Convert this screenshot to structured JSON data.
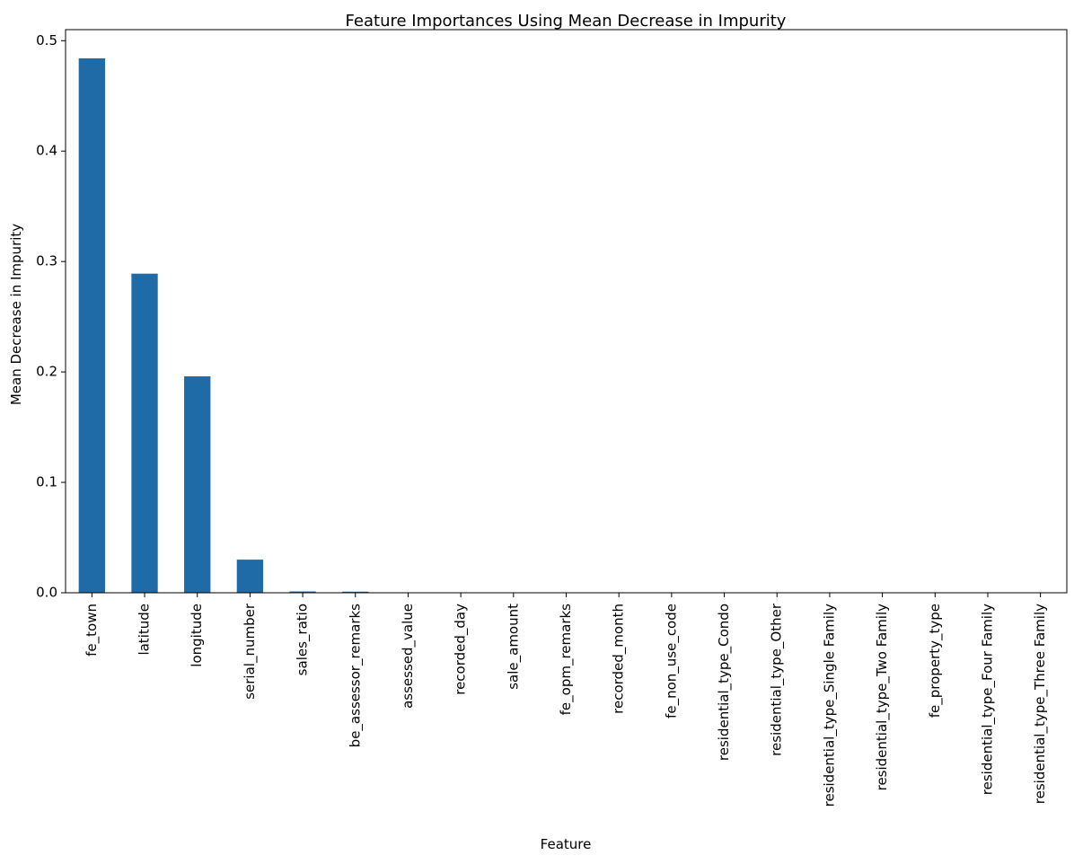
{
  "chart_data": {
    "type": "bar",
    "title": "Feature Importances Using Mean Decrease in Impurity",
    "xlabel": "Feature",
    "ylabel": "Mean Decrease in Impurity",
    "ylim": [
      0,
      0.51
    ],
    "yticks": [
      0.0,
      0.1,
      0.2,
      0.3,
      0.4,
      0.5
    ],
    "ytick_labels": [
      "0.0",
      "0.1",
      "0.2",
      "0.3",
      "0.4",
      "0.5"
    ],
    "grid": false,
    "bar_color": "#1f6ba8",
    "categories": [
      "fe_town",
      "latitude",
      "longitude",
      "serial_number",
      "sales_ratio",
      "be_assessor_remarks",
      "assessed_value",
      "recorded_day",
      "sale_amount",
      "fe_opm_remarks",
      "recorded_month",
      "fe_non_use_code",
      "residential_type_Condo",
      "residential_type_Other",
      "residential_type_Single Family",
      "residential_type_Two Family",
      "fe_property_type",
      "residential_type_Four Family",
      "residential_type_Three Family"
    ],
    "values": [
      0.484,
      0.289,
      0.196,
      0.03,
      0.0012,
      0.001,
      0.0002,
      0.0001,
      0.0001,
      0.0,
      0.0,
      0.0,
      0.0,
      0.0,
      0.0,
      0.0,
      0.0,
      0.0,
      0.0
    ]
  }
}
